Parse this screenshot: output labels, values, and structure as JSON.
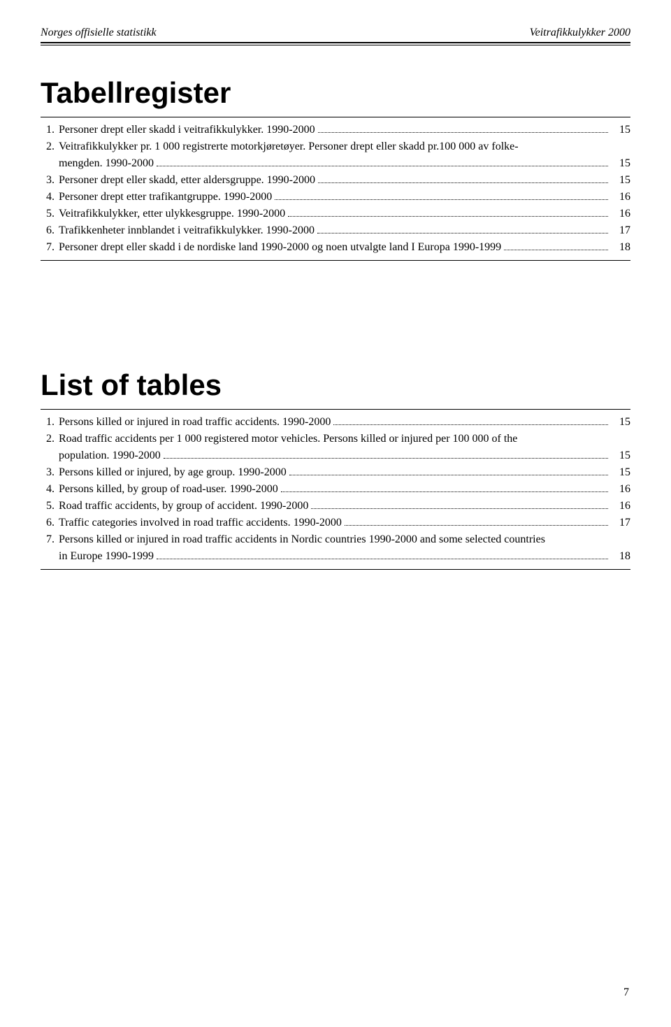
{
  "header": {
    "left": "Norges offisielle statistikk",
    "right": "Veitrafikkulykker 2000"
  },
  "headings": {
    "no": "Tabellregister",
    "en": "List of tables"
  },
  "toc_no": [
    {
      "n": "1.",
      "t": "Personer drept eller skadd i veitrafikkulykker.  1990-2000",
      "p": "15"
    },
    {
      "n": "2.",
      "t": "Veitrafikkulykker pr. 1 000 registrerte motorkjøretøyer. Personer drept eller skadd pr.100 000 av folke-",
      "t2": "mengden. 1990-2000",
      "p": "15"
    },
    {
      "n": "3.",
      "t": "Personer drept eller skadd, etter aldersgruppe. 1990-2000",
      "p": "15"
    },
    {
      "n": "4.",
      "t": "Personer drept etter trafikantgruppe. 1990-2000",
      "p": "16"
    },
    {
      "n": "5.",
      "t": "Veitrafikkulykker, etter ulykkesgruppe. 1990-2000",
      "p": "16"
    },
    {
      "n": "6.",
      "t": "Trafikkenheter innblandet i veitrafikkulykker. 1990-2000",
      "p": "17"
    },
    {
      "n": "7.",
      "t": "Personer drept eller skadd i de nordiske land 1990-2000 og noen utvalgte land I Europa 1990-1999",
      "p": "18"
    }
  ],
  "toc_en": [
    {
      "n": "1.",
      "t": "Persons killed or injured in road traffic accidents. 1990-2000",
      "p": "15"
    },
    {
      "n": "2.",
      "t": "Road traffic accidents per 1 000 registered motor vehicles. Persons killed or injured per 100 000 of the",
      "t2": "population. 1990-2000",
      "p": "15"
    },
    {
      "n": "3.",
      "t": "Persons killed or injured, by age group. 1990-2000",
      "p": "15"
    },
    {
      "n": "4.",
      "t": "Persons killed, by group of road-user. 1990-2000",
      "p": "16"
    },
    {
      "n": "5.",
      "t": "Road traffic accidents, by group of accident. 1990-2000",
      "p": "16"
    },
    {
      "n": "6.",
      "t": "Traffic categories involved in road traffic accidents. 1990-2000",
      "p": "17"
    },
    {
      "n": "7.",
      "t": "Persons killed or injured in road traffic accidents in Nordic countries 1990-2000 and some selected countries",
      "t2": "in Europe 1990-1999",
      "p": "18"
    }
  ],
  "page_number": "7"
}
